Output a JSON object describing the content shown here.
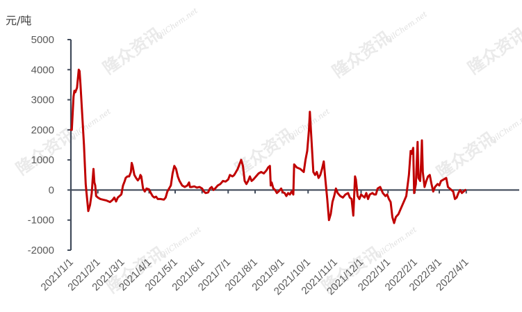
{
  "watermark": {
    "brand": "隆众资讯",
    "site": "OilChem.net"
  },
  "chart_data": {
    "type": "line",
    "title": "",
    "ylabel": "元/吨",
    "xlabel": "",
    "ylim": [
      -2000,
      5000
    ],
    "yticks": [
      -2000,
      -1000,
      0,
      1000,
      2000,
      3000,
      4000,
      5000
    ],
    "ytick_labels": [
      "-2000",
      "-1000",
      "0",
      "1000",
      "2000",
      "3000",
      "4000",
      "5000"
    ],
    "xlim": [
      "2021-01-01",
      "2022-04-30"
    ],
    "xticks": [
      "2021-01-01",
      "2021-02-01",
      "2021-03-01",
      "2021-04-01",
      "2021-05-01",
      "2021-06-01",
      "2021-07-01",
      "2021-08-01",
      "2021-09-01",
      "2021-10-01",
      "2021-11-01",
      "2021-12-01",
      "2022-01-01",
      "2022-02-01",
      "2022-03-01",
      "2022-04-01"
    ],
    "xtick_labels": [
      "2021/1/1",
      "2021/2/1",
      "2021/3/1",
      "2021/4/1",
      "2021/5/1",
      "2021/6/1",
      "2021/7/1",
      "2021/8/1",
      "2021/9/1",
      "2021/10/1",
      "2021/11/1",
      "2021/12/1",
      "2022/1/1",
      "2022/2/1",
      "2022/3/1",
      "2022/4/1"
    ],
    "grid": false,
    "legend": "none",
    "series": [
      {
        "color": "#c00000",
        "points": [
          [
            "2021-01-01",
            2000
          ],
          [
            "2021-01-02",
            2000
          ],
          [
            "2021-01-04",
            3100
          ],
          [
            "2021-01-05",
            3300
          ],
          [
            "2021-01-06",
            3250
          ],
          [
            "2021-01-08",
            3400
          ],
          [
            "2021-01-10",
            4000
          ],
          [
            "2021-01-11",
            3950
          ],
          [
            "2021-01-12",
            3500
          ],
          [
            "2021-01-14",
            2500
          ],
          [
            "2021-01-16",
            1500
          ],
          [
            "2021-01-18",
            200
          ],
          [
            "2021-01-19",
            -100
          ],
          [
            "2021-01-21",
            -700
          ],
          [
            "2021-01-23",
            -500
          ],
          [
            "2021-01-25",
            -100
          ],
          [
            "2021-01-26",
            350
          ],
          [
            "2021-01-27",
            700
          ],
          [
            "2021-01-28",
            250
          ],
          [
            "2021-01-29",
            150
          ],
          [
            "2021-01-30",
            -200
          ],
          [
            "2021-02-01",
            -250
          ],
          [
            "2021-02-04",
            -300
          ],
          [
            "2021-02-08",
            -330
          ],
          [
            "2021-02-11",
            -350
          ],
          [
            "2021-02-15",
            -400
          ],
          [
            "2021-02-18",
            -330
          ],
          [
            "2021-02-20",
            -250
          ],
          [
            "2021-02-22",
            -380
          ],
          [
            "2021-02-24",
            -250
          ],
          [
            "2021-02-26",
            -200
          ],
          [
            "2021-02-28",
            -150
          ],
          [
            "2021-03-02",
            150
          ],
          [
            "2021-03-04",
            300
          ],
          [
            "2021-03-05",
            400
          ],
          [
            "2021-03-07",
            450
          ],
          [
            "2021-03-09",
            450
          ],
          [
            "2021-03-11",
            600
          ],
          [
            "2021-03-12",
            900
          ],
          [
            "2021-03-13",
            800
          ],
          [
            "2021-03-15",
            500
          ],
          [
            "2021-03-17",
            400
          ],
          [
            "2021-03-19",
            320
          ],
          [
            "2021-03-21",
            400
          ],
          [
            "2021-03-22",
            500
          ],
          [
            "2021-03-23",
            450
          ],
          [
            "2021-03-25",
            50
          ],
          [
            "2021-03-27",
            -50
          ],
          [
            "2021-03-29",
            50
          ],
          [
            "2021-04-01",
            20
          ],
          [
            "2021-04-03",
            -100
          ],
          [
            "2021-04-05",
            -200
          ],
          [
            "2021-04-07",
            -250
          ],
          [
            "2021-04-09",
            -220
          ],
          [
            "2021-04-11",
            -300
          ],
          [
            "2021-04-14",
            -300
          ],
          [
            "2021-04-18",
            -320
          ],
          [
            "2021-04-20",
            -250
          ],
          [
            "2021-04-22",
            -50
          ],
          [
            "2021-04-24",
            50
          ],
          [
            "2021-04-26",
            150
          ],
          [
            "2021-04-28",
            550
          ],
          [
            "2021-04-30",
            800
          ],
          [
            "2021-05-02",
            700
          ],
          [
            "2021-05-04",
            450
          ],
          [
            "2021-05-06",
            300
          ],
          [
            "2021-05-09",
            150
          ],
          [
            "2021-05-12",
            100
          ],
          [
            "2021-05-15",
            150
          ],
          [
            "2021-05-17",
            250
          ],
          [
            "2021-05-18",
            100
          ],
          [
            "2021-05-20",
            100
          ],
          [
            "2021-05-23",
            120
          ],
          [
            "2021-05-26",
            80
          ],
          [
            "2021-05-29",
            100
          ],
          [
            "2021-06-01",
            50
          ],
          [
            "2021-06-03",
            -50
          ],
          [
            "2021-06-05",
            -100
          ],
          [
            "2021-06-08",
            -80
          ],
          [
            "2021-06-10",
            50
          ],
          [
            "2021-06-12",
            100
          ],
          [
            "2021-06-14",
            0
          ],
          [
            "2021-06-16",
            50
          ],
          [
            "2021-06-19",
            150
          ],
          [
            "2021-06-22",
            200
          ],
          [
            "2021-06-25",
            300
          ],
          [
            "2021-06-28",
            280
          ],
          [
            "2021-07-01",
            350
          ],
          [
            "2021-07-03",
            500
          ],
          [
            "2021-07-06",
            450
          ],
          [
            "2021-07-08",
            500
          ],
          [
            "2021-07-10",
            600
          ],
          [
            "2021-07-12",
            700
          ],
          [
            "2021-07-14",
            850
          ],
          [
            "2021-07-16",
            1000
          ],
          [
            "2021-07-18",
            800
          ],
          [
            "2021-07-20",
            300
          ],
          [
            "2021-07-22",
            200
          ],
          [
            "2021-07-24",
            300
          ],
          [
            "2021-07-26",
            450
          ],
          [
            "2021-07-28",
            300
          ],
          [
            "2021-07-30",
            350
          ],
          [
            "2021-08-02",
            450
          ],
          [
            "2021-08-05",
            550
          ],
          [
            "2021-08-08",
            600
          ],
          [
            "2021-08-11",
            550
          ],
          [
            "2021-08-14",
            650
          ],
          [
            "2021-08-16",
            750
          ],
          [
            "2021-08-18",
            800
          ],
          [
            "2021-08-19",
            150
          ],
          [
            "2021-08-20",
            250
          ],
          [
            "2021-08-22",
            50
          ],
          [
            "2021-08-24",
            0
          ],
          [
            "2021-08-26",
            -100
          ],
          [
            "2021-08-28",
            -50
          ],
          [
            "2021-08-31",
            50
          ],
          [
            "2021-09-02",
            -80
          ],
          [
            "2021-09-04",
            -100
          ],
          [
            "2021-09-06",
            -200
          ],
          [
            "2021-09-08",
            -100
          ],
          [
            "2021-09-10",
            -150
          ],
          [
            "2021-09-12",
            -50
          ],
          [
            "2021-09-14",
            -150
          ],
          [
            "2021-09-15",
            850
          ],
          [
            "2021-09-18",
            750
          ],
          [
            "2021-09-22",
            700
          ],
          [
            "2021-09-26",
            600
          ],
          [
            "2021-09-28",
            1000
          ],
          [
            "2021-09-30",
            1300
          ],
          [
            "2021-10-02",
            2000
          ],
          [
            "2021-10-03",
            2600
          ],
          [
            "2021-10-05",
            1600
          ],
          [
            "2021-10-07",
            600
          ],
          [
            "2021-10-09",
            500
          ],
          [
            "2021-10-11",
            600
          ],
          [
            "2021-10-13",
            400
          ],
          [
            "2021-10-15",
            500
          ],
          [
            "2021-10-17",
            700
          ],
          [
            "2021-10-19",
            950
          ],
          [
            "2021-10-21",
            300
          ],
          [
            "2021-10-23",
            -300
          ],
          [
            "2021-10-25",
            -1000
          ],
          [
            "2021-10-27",
            -800
          ],
          [
            "2021-10-29",
            -400
          ],
          [
            "2021-10-31",
            -200
          ],
          [
            "2021-11-02",
            50
          ],
          [
            "2021-11-04",
            -100
          ],
          [
            "2021-11-07",
            -200
          ],
          [
            "2021-11-10",
            -250
          ],
          [
            "2021-11-13",
            -150
          ],
          [
            "2021-11-16",
            -100
          ],
          [
            "2021-11-18",
            -250
          ],
          [
            "2021-11-20",
            -300
          ],
          [
            "2021-11-22",
            -850
          ],
          [
            "2021-11-24",
            450
          ],
          [
            "2021-11-25",
            350
          ],
          [
            "2021-11-27",
            -200
          ],
          [
            "2021-11-29",
            -300
          ],
          [
            "2021-12-01",
            -150
          ],
          [
            "2021-12-03",
            -200
          ],
          [
            "2021-12-05",
            -250
          ],
          [
            "2021-12-07",
            -100
          ],
          [
            "2021-12-09",
            -300
          ],
          [
            "2021-12-11",
            -150
          ],
          [
            "2021-12-14",
            -100
          ],
          [
            "2021-12-16",
            -150
          ],
          [
            "2021-12-18",
            -150
          ],
          [
            "2021-12-20",
            50
          ],
          [
            "2021-12-23",
            100
          ],
          [
            "2021-12-26",
            -100
          ],
          [
            "2021-12-29",
            -200
          ],
          [
            "2021-12-31",
            -150
          ],
          [
            "2022-01-02",
            -300
          ],
          [
            "2022-01-04",
            -400
          ],
          [
            "2022-01-06",
            -900
          ],
          [
            "2022-01-08",
            -1100
          ],
          [
            "2022-01-10",
            -900
          ],
          [
            "2022-01-13",
            -800
          ],
          [
            "2022-01-16",
            -600
          ],
          [
            "2022-01-19",
            -400
          ],
          [
            "2022-01-22",
            -200
          ],
          [
            "2022-01-25",
            500
          ],
          [
            "2022-01-27",
            1300
          ],
          [
            "2022-01-28",
            1200
          ],
          [
            "2022-01-30",
            1400
          ],
          [
            "2022-01-31",
            -100
          ],
          [
            "2022-02-02",
            200
          ],
          [
            "2022-02-04",
            1600
          ],
          [
            "2022-02-05",
            400
          ],
          [
            "2022-02-07",
            300
          ],
          [
            "2022-02-08",
            900
          ],
          [
            "2022-02-09",
            1650
          ],
          [
            "2022-02-10",
            600
          ],
          [
            "2022-02-12",
            100
          ],
          [
            "2022-02-14",
            300
          ],
          [
            "2022-02-16",
            450
          ],
          [
            "2022-02-18",
            500
          ],
          [
            "2022-02-20",
            200
          ],
          [
            "2022-02-22",
            -50
          ],
          [
            "2022-02-24",
            100
          ],
          [
            "2022-02-27",
            200
          ],
          [
            "2022-03-01",
            150
          ],
          [
            "2022-03-03",
            300
          ],
          [
            "2022-03-06",
            350
          ],
          [
            "2022-03-09",
            400
          ],
          [
            "2022-03-11",
            100
          ],
          [
            "2022-03-13",
            50
          ],
          [
            "2022-03-15",
            0
          ],
          [
            "2022-03-17",
            -50
          ],
          [
            "2022-03-19",
            -300
          ],
          [
            "2022-03-21",
            -250
          ],
          [
            "2022-03-23",
            -100
          ],
          [
            "2022-03-25",
            0
          ],
          [
            "2022-03-27",
            -100
          ],
          [
            "2022-03-29",
            -50
          ],
          [
            "2022-03-31",
            0
          ]
        ]
      }
    ]
  }
}
